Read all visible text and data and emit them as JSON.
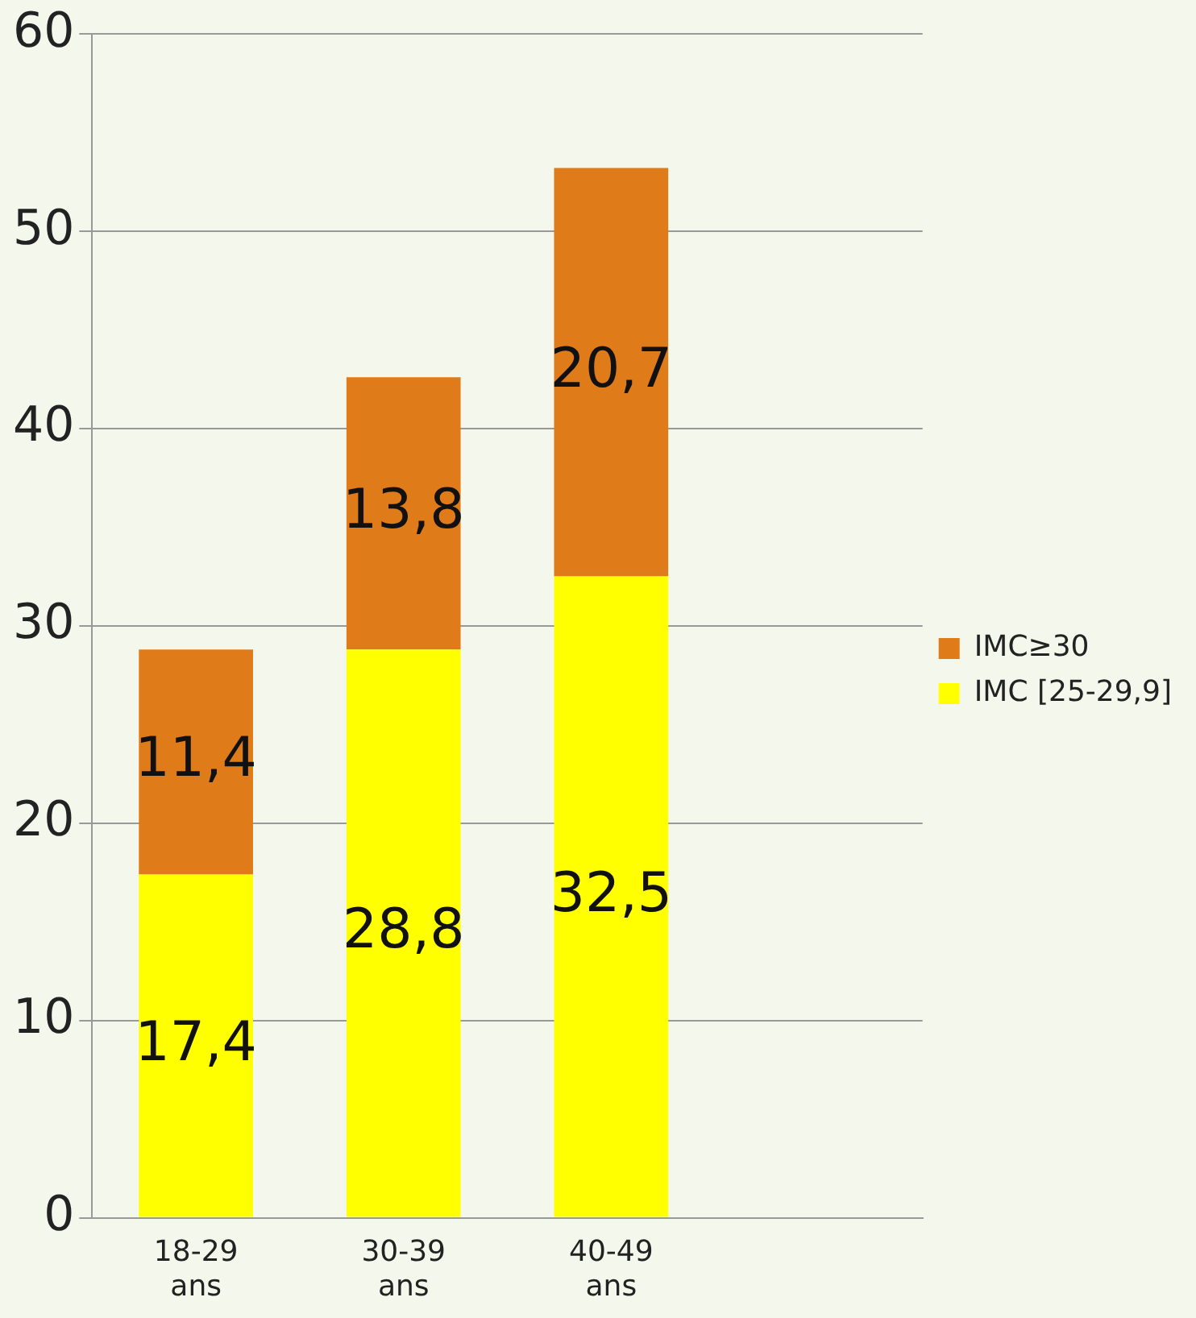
{
  "chart_data": {
    "type": "bar",
    "stacked": true,
    "categories": [
      "18-29 ans",
      "30-39 ans",
      "40-49 ans",
      null
    ],
    "series": [
      {
        "name": "IMC [25-29,9]",
        "color": "#ffff00",
        "values": [
          17.4,
          28.8,
          32.5,
          null
        ],
        "value_labels": [
          "17,4",
          "28,8",
          "32,5",
          null
        ]
      },
      {
        "name": "IMC≥30",
        "color": "#e07b1a",
        "values": [
          11.4,
          13.8,
          20.7,
          null
        ],
        "value_labels": [
          "11,4",
          "13,8",
          "20,7",
          null
        ]
      }
    ],
    "ylim": [
      0,
      60
    ],
    "yticks": [
      0,
      10,
      20,
      30,
      40,
      50,
      60
    ],
    "grid": "y",
    "legend": "right"
  }
}
